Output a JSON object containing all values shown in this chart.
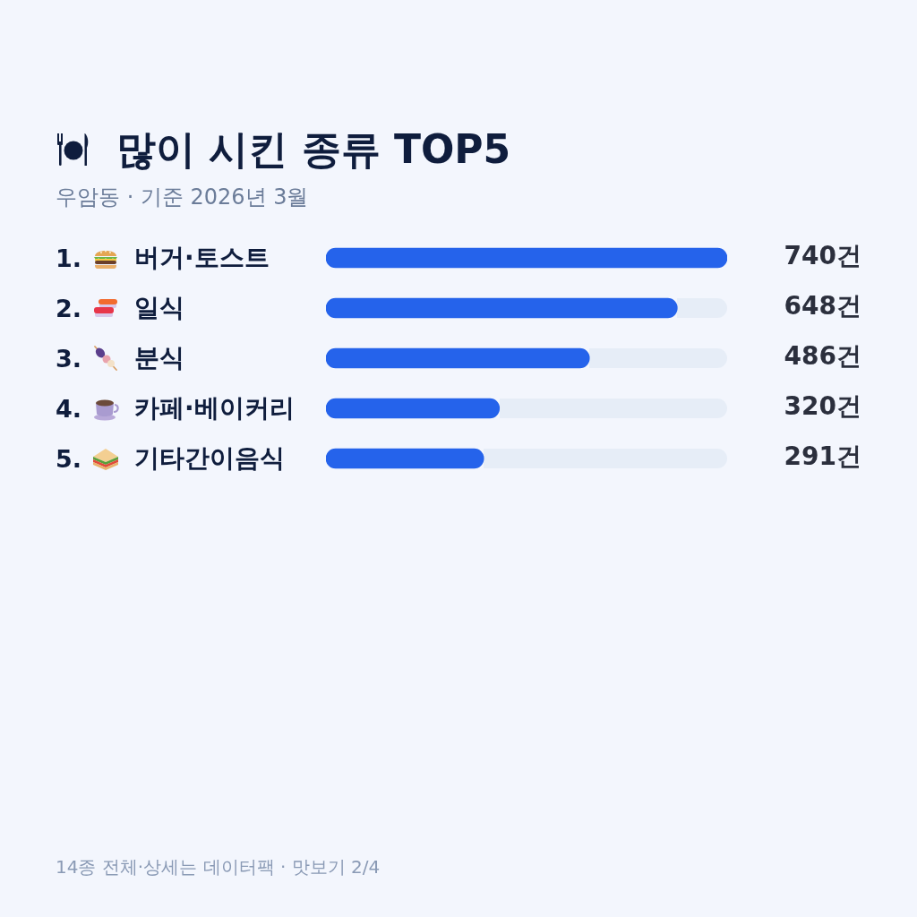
{
  "chart_data": {
    "type": "bar",
    "orientation": "horizontal",
    "title": "많이 시킨 종류 TOP5",
    "subtitle": "우암동 · 기준 2026년 3월",
    "categories": [
      "1. 버거·토스트",
      "2. 일식",
      "3. 분식",
      "4. 카페·베이커리",
      "5. 기타간이음식"
    ],
    "values": [
      740,
      648,
      486,
      320,
      291
    ],
    "color": "#2563eb",
    "value_labels": [
      "740건",
      "648건",
      "486건",
      "320건",
      "291건"
    ],
    "annotations": [
      "14종 전체·상세는 데이터팩 · 맛보기 2/4"
    ]
  }
}
